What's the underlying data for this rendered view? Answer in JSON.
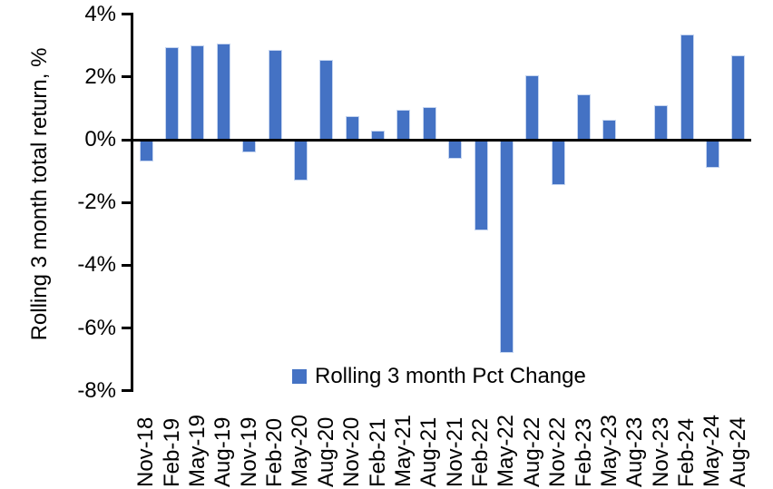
{
  "chart_data": {
    "type": "bar",
    "title": "",
    "xlabel": "",
    "ylabel": "Rolling 3 month total return, %",
    "ylim": [
      -8,
      4
    ],
    "grid": false,
    "legend_position": "bottom-center",
    "legend_entries": [
      "Rolling 3 month Pct Change"
    ],
    "ytick_values": [
      4,
      2,
      0,
      -2,
      -4,
      -6,
      -8
    ],
    "ytick_labels": [
      "4%",
      "2%",
      "0%",
      "-2%",
      "-4%",
      "-6%",
      "-8%"
    ],
    "categories": [
      "Nov-18",
      "Feb-19",
      "May-19",
      "Aug-19",
      "Nov-19",
      "Feb-20",
      "May-20",
      "Aug-20",
      "Nov-20",
      "Feb-21",
      "May-21",
      "Aug-21",
      "Nov-21",
      "Feb-22",
      "May-22",
      "Aug-22",
      "Nov-22",
      "Feb-23",
      "May-23",
      "Aug-23",
      "Nov-23",
      "Feb-24",
      "May-24",
      "Aug-24"
    ],
    "series": [
      {
        "name": "Rolling 3 month Pct Change",
        "values": [
          -0.7,
          2.95,
          3.0,
          3.05,
          -0.4,
          2.85,
          -1.3,
          2.55,
          0.75,
          0.3,
          0.95,
          1.05,
          -0.6,
          -2.9,
          -6.8,
          2.05,
          -1.45,
          1.45,
          0.65,
          0.0,
          1.1,
          3.35,
          -0.9,
          2.7
        ]
      }
    ],
    "colors": {
      "bar_fill": "#4472C4",
      "bar_edge": "#C5D5F0",
      "axis": "#000000",
      "text": "#000000",
      "background": "#FFFFFF"
    }
  }
}
